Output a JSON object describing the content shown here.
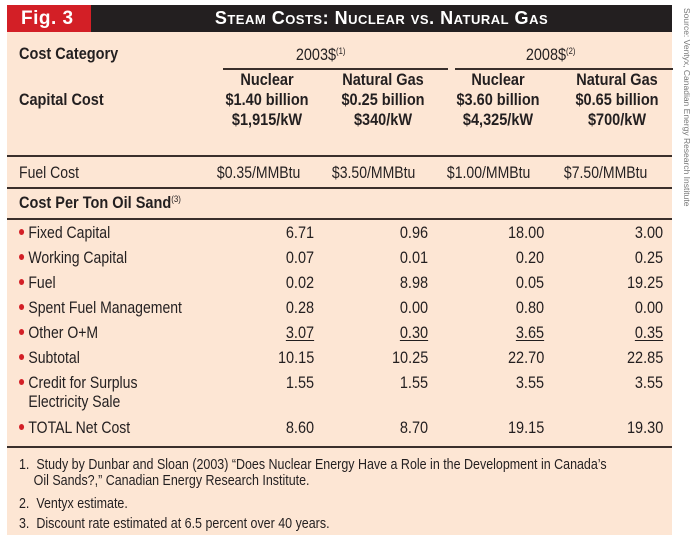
{
  "figure": {
    "label": "Fig. 3",
    "title": "Steam Costs: Nuclear vs. Natural Gas",
    "source": "Source: Ventyx, Canadian Energy Research Institute",
    "colors": {
      "label_bg": "#d31f26",
      "title_bg": "#231f20",
      "panel_bg": "#fde6d4",
      "bullet": "#d31f26"
    }
  },
  "header": {
    "cost_category": "Cost Category",
    "capital_cost": "Capital Cost",
    "groups": [
      {
        "label": "2003$",
        "note": "(1)"
      },
      {
        "label": "2008$",
        "note": "(2)"
      }
    ],
    "columns": [
      {
        "name": "Nuclear",
        "capital": "$1.40 billion",
        "per_kw": "$1,915/kW"
      },
      {
        "name": "Natural Gas",
        "capital": "$0.25 billion",
        "per_kw": "$340/kW"
      },
      {
        "name": "Nuclear",
        "capital": "$3.60 billion",
        "per_kw": "$4,325/kW"
      },
      {
        "name": "Natural Gas",
        "capital": "$0.65 billion",
        "per_kw": "$700/kW"
      }
    ]
  },
  "fuel_cost": {
    "label": "Fuel Cost",
    "values": [
      "$0.35/MMBtu",
      "$3.50/MMBtu",
      "$1.00/MMBtu",
      "$7.50/MMBtu"
    ]
  },
  "section": {
    "label": "Cost Per Ton Oil Sand",
    "note": "(3)"
  },
  "rows": [
    {
      "label": "Fixed Capital",
      "values": [
        "6.71",
        "0.96",
        "18.00",
        "3.00"
      ]
    },
    {
      "label": "Working Capital",
      "values": [
        "0.07",
        "0.01",
        "0.20",
        "0.25"
      ]
    },
    {
      "label": "Fuel",
      "values": [
        "0.02",
        "8.98",
        "0.05",
        "19.25"
      ]
    },
    {
      "label": "Spent Fuel Management",
      "values": [
        "0.28",
        "0.00",
        "0.80",
        "0.00"
      ]
    },
    {
      "label": "Other O+M",
      "values": [
        "3.07",
        "0.30",
        "3.65",
        "0.35"
      ],
      "underlined": true
    },
    {
      "label": "Subtotal",
      "values": [
        "10.15",
        "10.25",
        "22.70",
        "22.85"
      ]
    },
    {
      "label": "Credit for Surplus",
      "label2": "Electricity Sale",
      "values": [
        "1.55",
        "1.55",
        "3.55",
        "3.55"
      ]
    },
    {
      "label": "TOTAL Net Cost",
      "values": [
        "8.60",
        "8.70",
        "19.15",
        "19.30"
      ]
    }
  ],
  "footnotes": [
    {
      "num": "1.",
      "line1": "Study by Dunbar and Sloan (2003) “Does Nuclear Energy Have a Role in the Development in Canada’s",
      "line2": "Oil Sands?,” Canadian Energy Research Institute."
    },
    {
      "num": "2.",
      "line1": "Ventyx estimate."
    },
    {
      "num": "3.",
      "line1": "Discount rate estimated at 6.5 percent over 40 years."
    }
  ]
}
